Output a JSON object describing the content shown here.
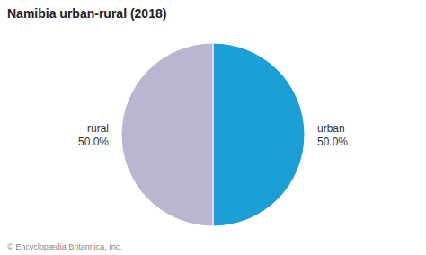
{
  "chart_data": {
    "type": "pie",
    "title": "Namibia urban-rural (2018)",
    "categories": [
      "urban",
      "rural"
    ],
    "values": [
      50.0,
      50.0
    ],
    "value_labels": [
      "50.0%",
      "50.0%"
    ],
    "colors": [
      "#1b9fd4",
      "#bbb5cf"
    ],
    "data_labels": true,
    "annotations": [
      "© Encyclopædia Britannica, Inc."
    ]
  }
}
